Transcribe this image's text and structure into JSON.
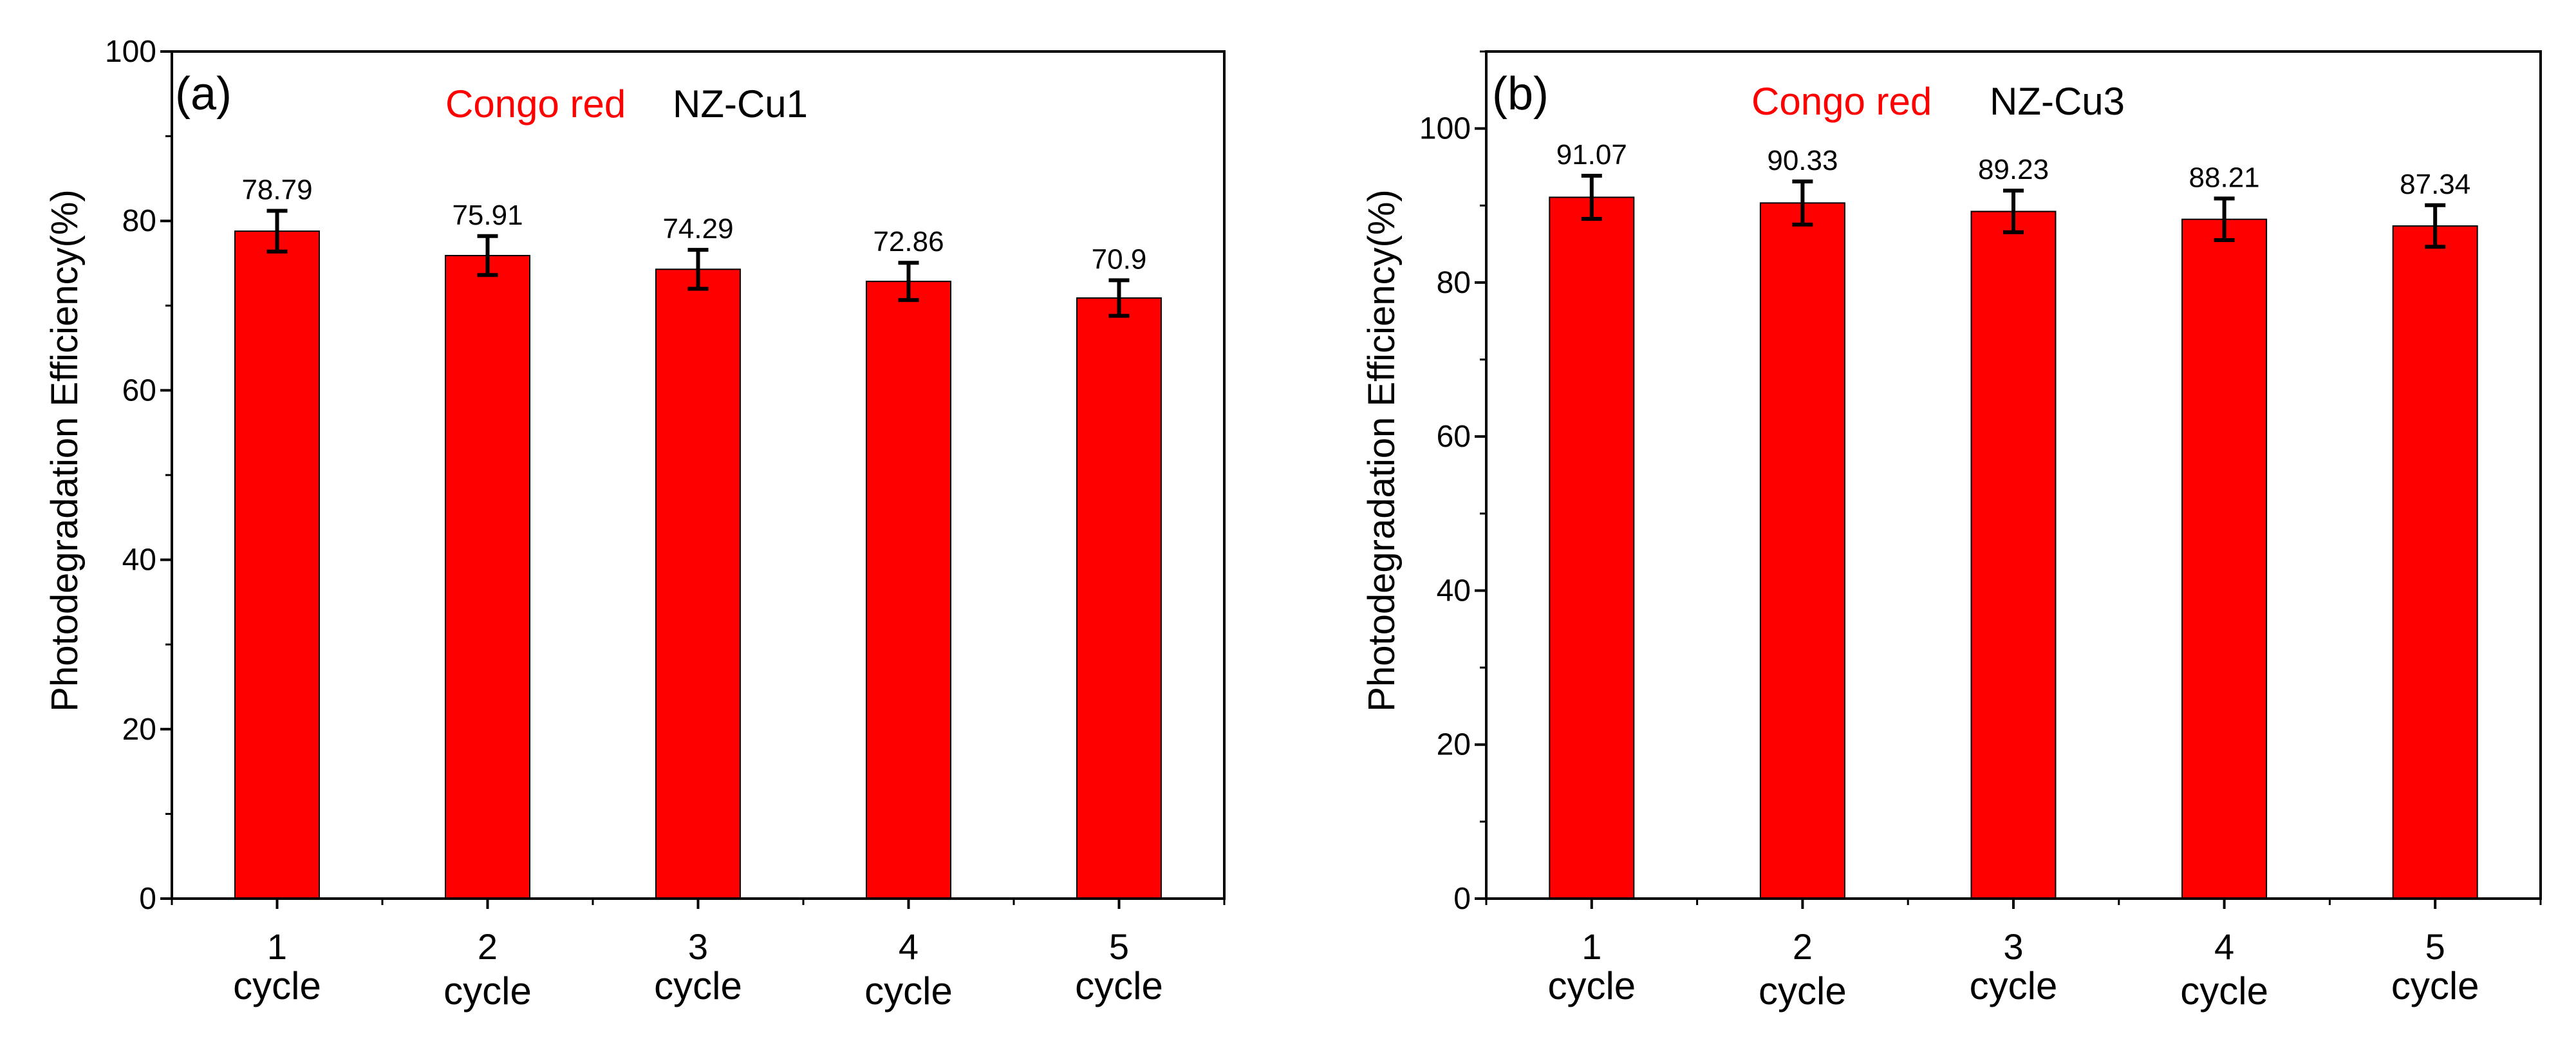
{
  "chart_data": [
    {
      "type": "bar",
      "panel_label": "(a)",
      "legend_dye": "Congo red",
      "legend_sample": "NZ-Cu1",
      "ylabel": "Photodegradation Efficiency(%)",
      "xlabel": "",
      "categories": [
        [
          "1",
          "cycle"
        ],
        [
          "2",
          "cycle"
        ],
        [
          "3",
          "cycle"
        ],
        [
          "4",
          "cycle"
        ],
        [
          "5",
          "cycle"
        ]
      ],
      "values": [
        78.79,
        75.91,
        74.29,
        72.86,
        70.9
      ],
      "value_labels": [
        "78.79",
        "75.91",
        "74.29",
        "72.86",
        "70.9"
      ],
      "errors": [
        2.4,
        2.3,
        2.3,
        2.2,
        2.1
      ],
      "ylim": [
        0,
        100
      ],
      "yticks": [
        0,
        20,
        40,
        60,
        80,
        100
      ],
      "yticklabels": [
        "0",
        "20",
        "40",
        "60",
        "80",
        "100"
      ],
      "ytick_minor_step": 10,
      "grid": false,
      "colors": {
        "bar": "#ff0000",
        "dye_text": "#ff0000",
        "text": "#000000"
      }
    },
    {
      "type": "bar",
      "panel_label": "(b)",
      "legend_dye": "Congo red",
      "legend_sample": "NZ-Cu3",
      "ylabel": "Photodegradation Efficiency(%)",
      "xlabel": "",
      "categories": [
        [
          "1",
          "cycle"
        ],
        [
          "2",
          "cycle"
        ],
        [
          "3",
          "cycle"
        ],
        [
          "4",
          "cycle"
        ],
        [
          "5",
          "cycle"
        ]
      ],
      "values": [
        91.07,
        90.33,
        89.23,
        88.21,
        87.34
      ],
      "value_labels": [
        "91.07",
        "90.33",
        "89.23",
        "88.21",
        "87.34"
      ],
      "errors": [
        2.8,
        2.8,
        2.7,
        2.7,
        2.7
      ],
      "ylim": [
        0,
        110
      ],
      "yticks": [
        0,
        20,
        40,
        60,
        80,
        100
      ],
      "yticklabels": [
        "0",
        "20",
        "40",
        "60",
        "80",
        "100"
      ],
      "ytick_minor_step": 10,
      "grid": false,
      "colors": {
        "bar": "#ff0000",
        "dye_text": "#ff0000",
        "text": "#000000"
      }
    }
  ]
}
